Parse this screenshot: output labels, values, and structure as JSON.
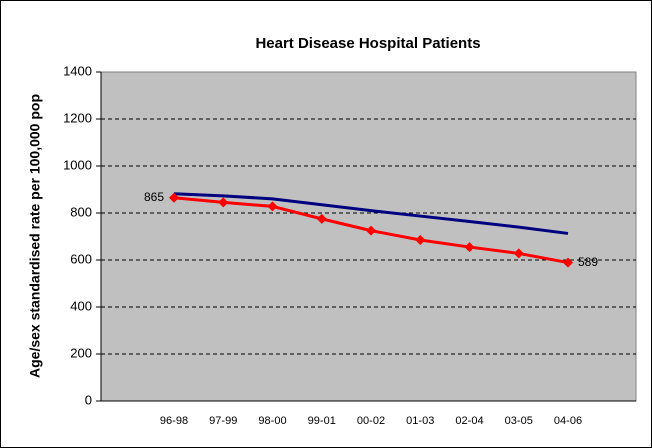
{
  "chart_data": {
    "type": "line",
    "title": "Heart Disease Hospital Patients",
    "y_label": "Age/sex standardised rate per 100,000 pop",
    "categories": [
      "96-98",
      "97-99",
      "98-00",
      "99-01",
      "00-02",
      "01-03",
      "02-04",
      "03-05",
      "04-06"
    ],
    "series": [
      {
        "color": "#000080",
        "values": [
          882,
          873,
          860,
          835,
          810,
          787,
          764,
          740,
          713
        ]
      },
      {
        "color": "#ff0000",
        "marker": "diamond",
        "values": [
          865,
          845,
          828,
          775,
          725,
          685,
          655,
          628,
          589
        ],
        "value_labels": [
          "865",
          null,
          null,
          null,
          null,
          null,
          null,
          null,
          "589"
        ]
      }
    ],
    "ylim": [
      0,
      1400
    ],
    "yticks": [
      0,
      200,
      400,
      600,
      800,
      1000,
      1200,
      1400
    ],
    "grid": true
  }
}
